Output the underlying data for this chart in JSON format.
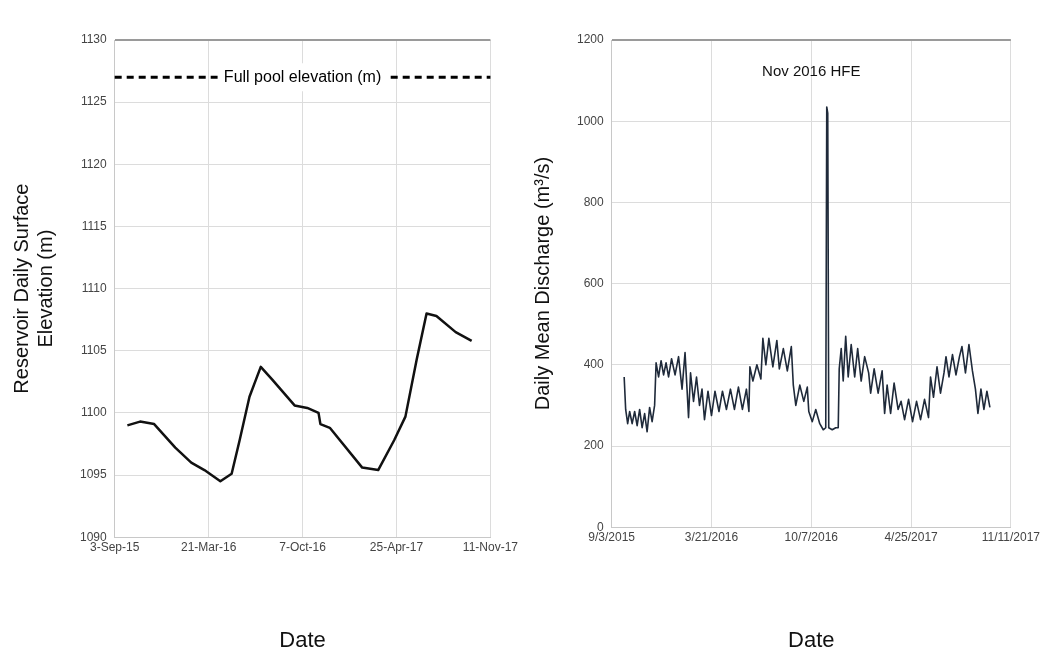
{
  "chart_data": [
    {
      "type": "line",
      "ylabel": "Reservoir Daily Surface Elevation (m)",
      "xlabel": "Date",
      "xlim": [
        "2015-09-03",
        "2017-11-11"
      ],
      "xticks": [
        {
          "value": "2015-09-03",
          "label": "3-Sep-15"
        },
        {
          "value": "2016-03-21",
          "label": "21-Mar-16"
        },
        {
          "value": "2016-10-07",
          "label": "7-Oct-16"
        },
        {
          "value": "2017-04-25",
          "label": "25-Apr-17"
        },
        {
          "value": "2017-11-11",
          "label": "11-Nov-17"
        }
      ],
      "ylim": [
        1090,
        1130
      ],
      "yticks": [
        1090,
        1095,
        1100,
        1105,
        1110,
        1115,
        1120,
        1125,
        1130
      ],
      "grid": true,
      "legend": false,
      "marker": "none",
      "line_style": "solid",
      "ref_lines": [
        {
          "axis": "y",
          "value": 1127,
          "label": "Full pool elevation (m)",
          "color": "#000000",
          "line_style": "dashed"
        }
      ],
      "series": [
        {
          "color": "#111111",
          "x": [
            "2015-09-30",
            "2015-10-27",
            "2015-11-26",
            "2016-01-10",
            "2016-02-13",
            "2016-03-12",
            "2016-04-15",
            "2016-05-09",
            "2016-05-26",
            "2016-06-16",
            "2016-07-10",
            "2016-08-03",
            "2016-09-20",
            "2016-10-17",
            "2016-11-10",
            "2016-11-14",
            "2016-12-04",
            "2017-02-11",
            "2017-03-17",
            "2017-04-20",
            "2017-05-14",
            "2017-06-07",
            "2017-06-28",
            "2017-07-19",
            "2017-08-29",
            "2017-10-02"
          ],
          "values": [
            1099.0,
            1099.3,
            1099.1,
            1097.2,
            1096.0,
            1095.4,
            1094.5,
            1095.1,
            1097.8,
            1101.3,
            1103.7,
            1102.7,
            1100.6,
            1100.4,
            1100.0,
            1099.1,
            1098.8,
            1095.6,
            1095.4,
            1097.8,
            1099.7,
            1104.3,
            1108.0,
            1107.8,
            1106.5,
            1105.8
          ]
        }
      ]
    },
    {
      "type": "line",
      "ylabel": "Daily Mean Discharge (m³/s)",
      "xlabel": "Date",
      "xlim": [
        "2015-09-03",
        "2017-11-11"
      ],
      "xticks": [
        {
          "value": "2015-09-03",
          "label": "9/3/2015"
        },
        {
          "value": "2016-03-21",
          "label": "3/21/2016"
        },
        {
          "value": "2016-10-07",
          "label": "10/7/2016"
        },
        {
          "value": "2017-04-25",
          "label": "4/25/2017"
        },
        {
          "value": "2017-11-11",
          "label": "11/11/2017"
        }
      ],
      "ylim": [
        0,
        1200
      ],
      "yticks": [
        0,
        200,
        400,
        600,
        800,
        1000,
        1200
      ],
      "grid": true,
      "legend": false,
      "marker": "none",
      "line_style": "solid",
      "annotations": [
        "Nov 2016 HFE"
      ],
      "series": [
        {
          "color": "#1f2a3a",
          "x": [
            "2015-09-28",
            "2015-10-01",
            "2015-10-05",
            "2015-10-09",
            "2015-10-14",
            "2015-10-19",
            "2015-10-24",
            "2015-10-29",
            "2015-11-03",
            "2015-11-08",
            "2015-11-13",
            "2015-11-18",
            "2015-11-23",
            "2015-11-28",
            "2015-12-01",
            "2015-12-06",
            "2015-12-11",
            "2015-12-16",
            "2015-12-21",
            "2015-12-26",
            "2016-01-01",
            "2016-01-08",
            "2016-01-15",
            "2016-01-22",
            "2016-01-28",
            "2016-02-01",
            "2016-02-04",
            "2016-02-08",
            "2016-02-14",
            "2016-02-20",
            "2016-02-26",
            "2016-03-02",
            "2016-03-07",
            "2016-03-14",
            "2016-03-21",
            "2016-03-28",
            "2016-04-05",
            "2016-04-12",
            "2016-04-20",
            "2016-04-28",
            "2016-05-06",
            "2016-05-14",
            "2016-05-22",
            "2016-05-30",
            "2016-06-04",
            "2016-06-06",
            "2016-06-12",
            "2016-06-20",
            "2016-06-28",
            "2016-07-02",
            "2016-07-08",
            "2016-07-14",
            "2016-07-22",
            "2016-07-30",
            "2016-08-04",
            "2016-08-12",
            "2016-08-20",
            "2016-08-28",
            "2016-09-01",
            "2016-09-06",
            "2016-09-14",
            "2016-09-22",
            "2016-09-29",
            "2016-10-02",
            "2016-10-09",
            "2016-10-16",
            "2016-10-24",
            "2016-10-31",
            "2016-11-05",
            "2016-11-07",
            "2016-11-09",
            "2016-11-11",
            "2016-11-18",
            "2016-11-25",
            "2016-11-30",
            "2016-12-02",
            "2016-12-06",
            "2016-12-10",
            "2016-12-15",
            "2016-12-20",
            "2016-12-26",
            "2017-01-02",
            "2017-01-08",
            "2017-01-15",
            "2017-01-22",
            "2017-01-30",
            "2017-02-03",
            "2017-02-10",
            "2017-02-18",
            "2017-02-26",
            "2017-03-03",
            "2017-03-08",
            "2017-03-15",
            "2017-03-22",
            "2017-03-30",
            "2017-04-05",
            "2017-04-12",
            "2017-04-20",
            "2017-04-28",
            "2017-05-06",
            "2017-05-14",
            "2017-05-22",
            "2017-05-30",
            "2017-06-03",
            "2017-06-09",
            "2017-06-16",
            "2017-06-23",
            "2017-06-30",
            "2017-07-04",
            "2017-07-10",
            "2017-07-17",
            "2017-07-24",
            "2017-07-31",
            "2017-08-05",
            "2017-08-12",
            "2017-08-19",
            "2017-08-26",
            "2017-09-01",
            "2017-09-06",
            "2017-09-12",
            "2017-09-18",
            "2017-09-24",
            "2017-09-30"
          ],
          "values": [
            370,
            290,
            255,
            285,
            255,
            285,
            250,
            290,
            245,
            280,
            235,
            295,
            260,
            300,
            405,
            370,
            410,
            375,
            405,
            370,
            415,
            375,
            420,
            340,
            430,
            340,
            270,
            380,
            310,
            370,
            300,
            340,
            265,
            335,
            275,
            335,
            285,
            335,
            290,
            340,
            290,
            345,
            290,
            340,
            285,
            395,
            360,
            400,
            365,
            465,
            400,
            465,
            395,
            460,
            390,
            440,
            385,
            445,
            350,
            300,
            350,
            310,
            345,
            285,
            260,
            290,
            255,
            240,
            245,
            1035,
            1020,
            245,
            240,
            245,
            245,
            390,
            440,
            360,
            470,
            370,
            450,
            370,
            440,
            360,
            420,
            380,
            330,
            390,
            330,
            385,
            280,
            350,
            280,
            355,
            290,
            310,
            265,
            315,
            260,
            310,
            265,
            315,
            270,
            370,
            320,
            395,
            330,
            380,
            420,
            370,
            425,
            375,
            420,
            445,
            380,
            450,
            385,
            340,
            280,
            340,
            290,
            335,
            295
          ]
        }
      ]
    }
  ]
}
